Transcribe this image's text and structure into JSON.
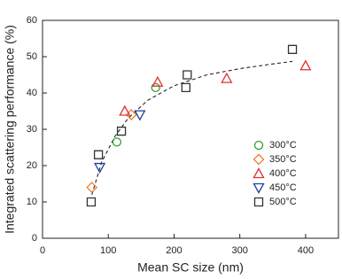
{
  "chart_data": {
    "type": "scatter",
    "x_label": "Mean SC size (nm)",
    "y_label": "Integrated scattering performance (%)",
    "xlim": [
      0,
      450
    ],
    "xticks": [
      0,
      100,
      200,
      300,
      400
    ],
    "ylim": [
      0,
      60
    ],
    "yticks": [
      0,
      10,
      20,
      30,
      40,
      50,
      60
    ],
    "legend_position": "right",
    "series": [
      {
        "name": "300°C",
        "color": "#2ca02c",
        "marker": "circle",
        "x": [
          113,
          172
        ],
        "values": [
          26.5,
          41.5
        ]
      },
      {
        "name": "350°C",
        "color": "#f07f2a",
        "marker": "diamond",
        "x": [
          75,
          135
        ],
        "values": [
          14,
          34
        ]
      },
      {
        "name": "400°C",
        "color": "#e03030",
        "marker": "triangle-up",
        "x": [
          125,
          175,
          280,
          400
        ],
        "values": [
          35,
          43,
          44,
          47.5
        ]
      },
      {
        "name": "450°C",
        "color": "#1f3fa0",
        "marker": "triangle-down",
        "x": [
          87,
          148
        ],
        "values": [
          19.5,
          34
        ]
      },
      {
        "name": "500°C",
        "color": "#333333",
        "marker": "square",
        "x": [
          74,
          85,
          120,
          220,
          218,
          380
        ],
        "values": [
          10,
          23,
          29.5,
          45,
          41.5,
          52
        ]
      }
    ],
    "fit": {
      "color": "#222222",
      "x": [
        75,
        90,
        110,
        130,
        160,
        200,
        250,
        300,
        350,
        380
      ],
      "y": [
        12,
        21,
        28,
        33,
        38,
        42,
        45,
        46.7,
        48,
        48.7
      ]
    }
  }
}
